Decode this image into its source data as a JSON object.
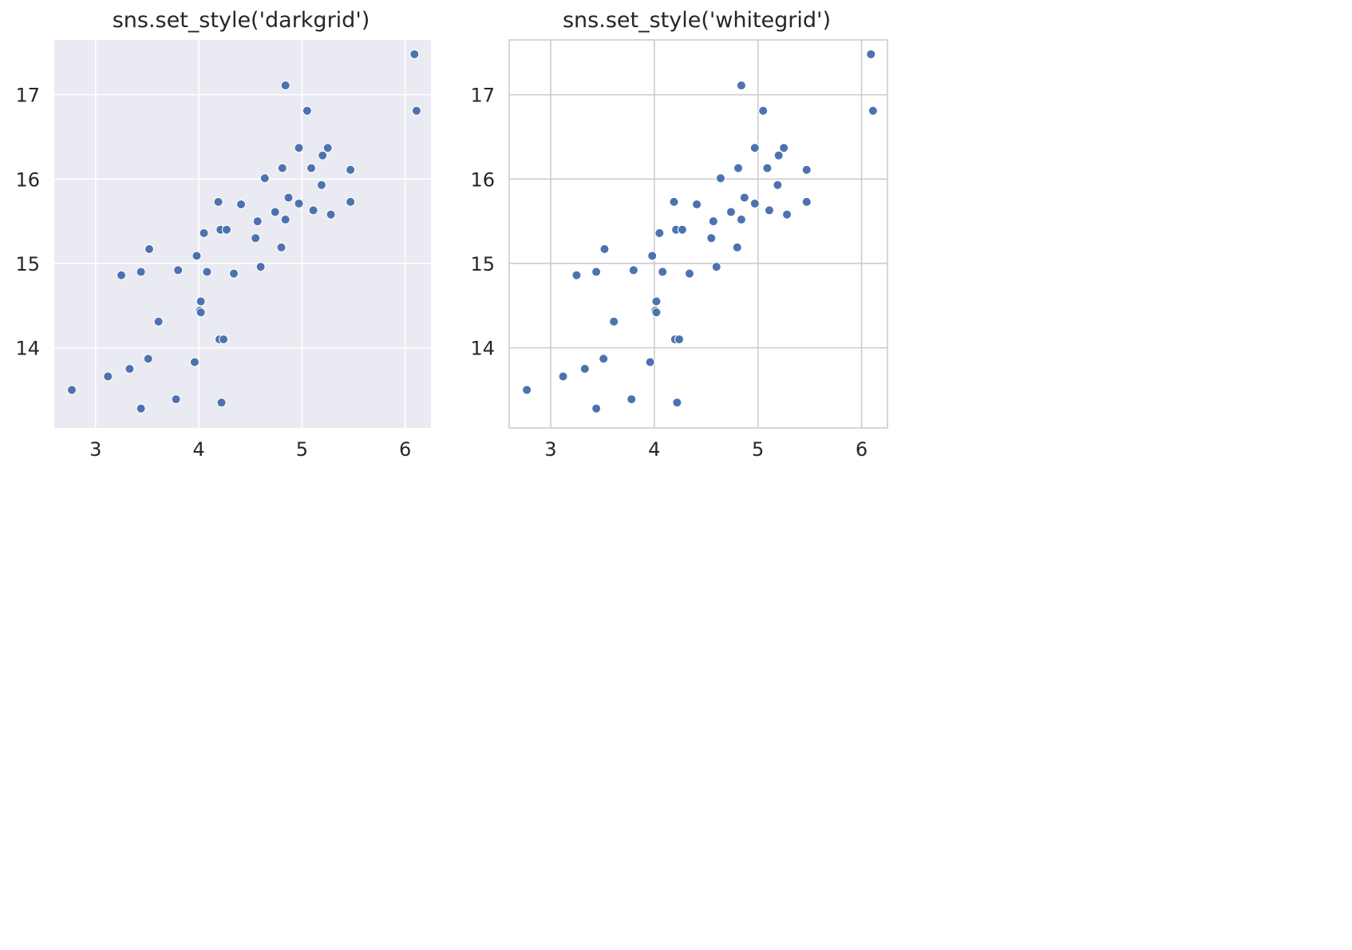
{
  "chart_data": [
    {
      "type": "scatter",
      "title": "sns.set_style('darkgrid')",
      "style": "darkgrid",
      "xlabel": "",
      "ylabel": "",
      "xlim": [
        2.6,
        6.25
      ],
      "ylim": [
        13.05,
        17.65
      ],
      "xticks": [
        3,
        4,
        5,
        6
      ],
      "yticks": [
        14,
        15,
        16,
        17
      ],
      "grid": true,
      "colors": {
        "background": "#eaeaf2",
        "grid": "#ffffff",
        "marker": "#4c72b0",
        "marker_edge": "#ffffff"
      },
      "series": [
        {
          "points": [
            [
              2.77,
              13.5
            ],
            [
              3.12,
              13.66
            ],
            [
              3.25,
              14.86
            ],
            [
              3.33,
              13.75
            ],
            [
              3.44,
              14.9
            ],
            [
              3.44,
              13.28
            ],
            [
              3.51,
              13.87
            ],
            [
              3.52,
              15.17
            ],
            [
              3.61,
              14.31
            ],
            [
              3.78,
              13.39
            ],
            [
              3.8,
              14.92
            ],
            [
              3.96,
              13.83
            ],
            [
              3.98,
              15.09
            ],
            [
              4.01,
              14.44
            ],
            [
              4.02,
              14.55
            ],
            [
              4.02,
              14.42
            ],
            [
              4.05,
              15.36
            ],
            [
              4.08,
              14.9
            ],
            [
              4.19,
              15.73
            ],
            [
              4.2,
              14.1
            ],
            [
              4.21,
              15.4
            ],
            [
              4.22,
              13.35
            ],
            [
              4.24,
              14.1
            ],
            [
              4.27,
              15.4
            ],
            [
              4.34,
              14.88
            ],
            [
              4.41,
              15.7
            ],
            [
              4.55,
              15.3
            ],
            [
              4.57,
              15.5
            ],
            [
              4.6,
              14.96
            ],
            [
              4.64,
              16.01
            ],
            [
              4.74,
              15.61
            ],
            [
              4.8,
              15.19
            ],
            [
              4.81,
              16.13
            ],
            [
              4.84,
              17.11
            ],
            [
              4.84,
              15.52
            ],
            [
              4.87,
              15.78
            ],
            [
              4.97,
              15.71
            ],
            [
              4.97,
              16.37
            ],
            [
              5.05,
              16.81
            ],
            [
              5.09,
              16.13
            ],
            [
              5.11,
              15.63
            ],
            [
              5.19,
              15.93
            ],
            [
              5.2,
              16.28
            ],
            [
              5.25,
              16.37
            ],
            [
              5.28,
              15.58
            ],
            [
              5.47,
              16.11
            ],
            [
              5.47,
              15.73
            ],
            [
              6.09,
              17.48
            ],
            [
              6.11,
              16.81
            ]
          ]
        }
      ]
    },
    {
      "type": "scatter",
      "title": "sns.set_style('whitegrid')",
      "style": "whitegrid",
      "xlabel": "",
      "ylabel": "",
      "xlim": [
        2.6,
        6.25
      ],
      "ylim": [
        13.05,
        17.65
      ],
      "xticks": [
        3,
        4,
        5,
        6
      ],
      "yticks": [
        14,
        15,
        16,
        17
      ],
      "grid": true,
      "colors": {
        "background": "#ffffff",
        "grid": "#cccccc",
        "marker": "#4c72b0",
        "marker_edge": "#ffffff"
      },
      "series": [
        {
          "points": [
            [
              2.77,
              13.5
            ],
            [
              3.12,
              13.66
            ],
            [
              3.25,
              14.86
            ],
            [
              3.33,
              13.75
            ],
            [
              3.44,
              14.9
            ],
            [
              3.44,
              13.28
            ],
            [
              3.51,
              13.87
            ],
            [
              3.52,
              15.17
            ],
            [
              3.61,
              14.31
            ],
            [
              3.78,
              13.39
            ],
            [
              3.8,
              14.92
            ],
            [
              3.96,
              13.83
            ],
            [
              3.98,
              15.09
            ],
            [
              4.01,
              14.44
            ],
            [
              4.02,
              14.55
            ],
            [
              4.02,
              14.42
            ],
            [
              4.05,
              15.36
            ],
            [
              4.08,
              14.9
            ],
            [
              4.19,
              15.73
            ],
            [
              4.2,
              14.1
            ],
            [
              4.21,
              15.4
            ],
            [
              4.22,
              13.35
            ],
            [
              4.24,
              14.1
            ],
            [
              4.27,
              15.4
            ],
            [
              4.34,
              14.88
            ],
            [
              4.41,
              15.7
            ],
            [
              4.55,
              15.3
            ],
            [
              4.57,
              15.5
            ],
            [
              4.6,
              14.96
            ],
            [
              4.64,
              16.01
            ],
            [
              4.74,
              15.61
            ],
            [
              4.8,
              15.19
            ],
            [
              4.81,
              16.13
            ],
            [
              4.84,
              17.11
            ],
            [
              4.84,
              15.52
            ],
            [
              4.87,
              15.78
            ],
            [
              4.97,
              15.71
            ],
            [
              4.97,
              16.37
            ],
            [
              5.05,
              16.81
            ],
            [
              5.09,
              16.13
            ],
            [
              5.11,
              15.63
            ],
            [
              5.19,
              15.93
            ],
            [
              5.2,
              16.28
            ],
            [
              5.25,
              16.37
            ],
            [
              5.28,
              15.58
            ],
            [
              5.47,
              16.11
            ],
            [
              5.47,
              15.73
            ],
            [
              6.09,
              17.48
            ],
            [
              6.11,
              16.81
            ]
          ]
        }
      ]
    }
  ]
}
